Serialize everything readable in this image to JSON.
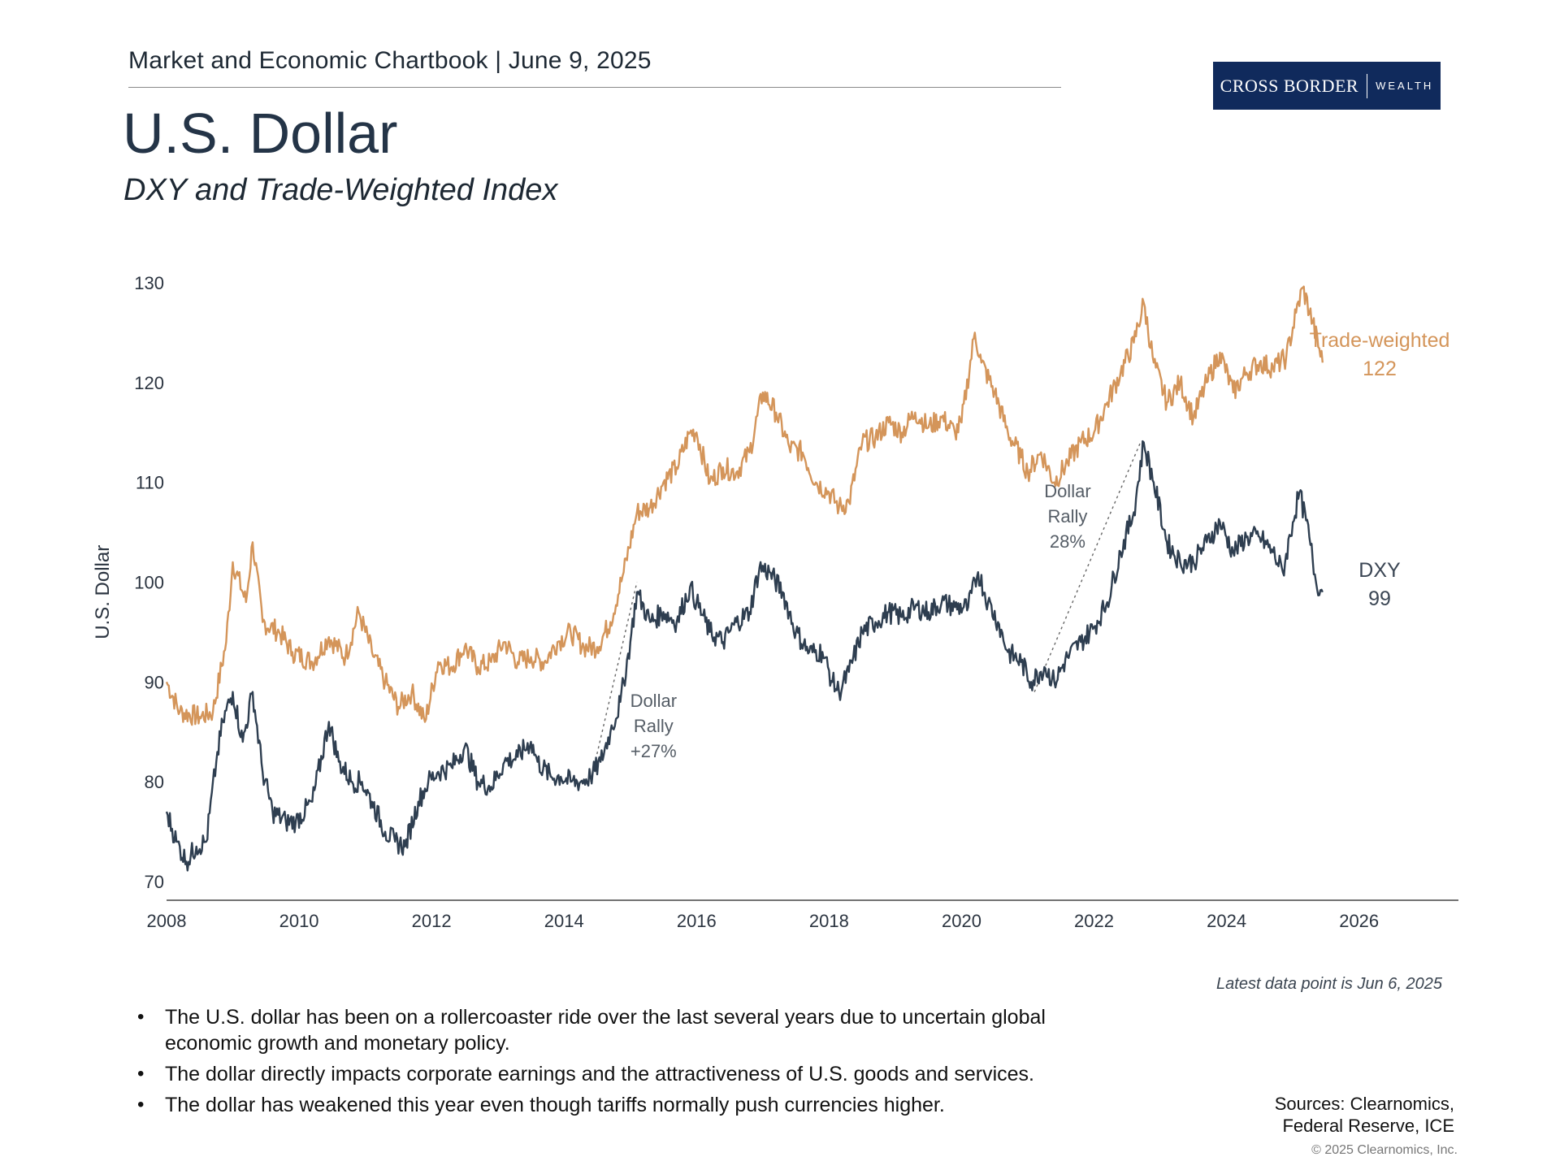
{
  "header": {
    "line": "Market and Economic Chartbook | June 9, 2025",
    "title": "U.S. Dollar",
    "subtitle": "DXY and Trade-Weighted Index"
  },
  "logo": {
    "brand": "CROSS BORDER",
    "sub": "WEALTH",
    "background": "#102a5c"
  },
  "chart_data": {
    "type": "line",
    "ylabel": "U.S. Dollar",
    "xlabel": "",
    "xlim": [
      2008,
      2027.5
    ],
    "ylim": [
      70,
      130
    ],
    "x_ticks": [
      "2008",
      "2010",
      "2012",
      "2014",
      "2016",
      "2018",
      "2020",
      "2022",
      "2024",
      "2026"
    ],
    "y_ticks": [
      "70",
      "80",
      "90",
      "100",
      "110",
      "120",
      "130"
    ],
    "grid": false,
    "series": [
      {
        "name": "Trade-weighted",
        "color": "#d4955a",
        "end_label": "Trade-weighted",
        "end_value": "122",
        "points": [
          [
            2008.0,
            90
          ],
          [
            2008.2,
            87
          ],
          [
            2008.5,
            86.5
          ],
          [
            2008.7,
            87
          ],
          [
            2008.9,
            94
          ],
          [
            2009.0,
            102
          ],
          [
            2009.2,
            98
          ],
          [
            2009.3,
            104
          ],
          [
            2009.45,
            96
          ],
          [
            2009.7,
            95
          ],
          [
            2009.9,
            93
          ],
          [
            2010.2,
            92
          ],
          [
            2010.45,
            94.5
          ],
          [
            2010.7,
            92.5
          ],
          [
            2010.9,
            97
          ],
          [
            2011.1,
            93
          ],
          [
            2011.3,
            90
          ],
          [
            2011.5,
            87.5
          ],
          [
            2011.7,
            89
          ],
          [
            2011.9,
            86
          ],
          [
            2012.1,
            92
          ],
          [
            2012.3,
            91.5
          ],
          [
            2012.5,
            93.5
          ],
          [
            2012.7,
            91.5
          ],
          [
            2012.9,
            92
          ],
          [
            2013.1,
            94
          ],
          [
            2013.3,
            92
          ],
          [
            2013.5,
            92.5
          ],
          [
            2013.7,
            92
          ],
          [
            2013.9,
            94
          ],
          [
            2014.1,
            95
          ],
          [
            2014.3,
            93.5
          ],
          [
            2014.5,
            93.5
          ],
          [
            2014.7,
            96
          ],
          [
            2014.9,
            101
          ],
          [
            2015.1,
            107
          ],
          [
            2015.3,
            107.5
          ],
          [
            2015.5,
            110
          ],
          [
            2015.7,
            111.5
          ],
          [
            2015.9,
            115
          ],
          [
            2016.0,
            115
          ],
          [
            2016.2,
            110
          ],
          [
            2016.4,
            111.5
          ],
          [
            2016.6,
            111
          ],
          [
            2016.8,
            113
          ],
          [
            2017.0,
            119
          ],
          [
            2017.2,
            117
          ],
          [
            2017.4,
            113.5
          ],
          [
            2017.6,
            113
          ],
          [
            2017.8,
            110
          ],
          [
            2018.0,
            109
          ],
          [
            2018.15,
            107.5
          ],
          [
            2018.3,
            108
          ],
          [
            2018.5,
            114
          ],
          [
            2018.7,
            114.5
          ],
          [
            2018.9,
            116
          ],
          [
            2019.1,
            115
          ],
          [
            2019.3,
            117
          ],
          [
            2019.5,
            115.5
          ],
          [
            2019.7,
            116.5
          ],
          [
            2019.9,
            115
          ],
          [
            2020.0,
            116
          ],
          [
            2020.2,
            125
          ],
          [
            2020.3,
            122
          ],
          [
            2020.5,
            119
          ],
          [
            2020.7,
            115
          ],
          [
            2020.9,
            112.5
          ],
          [
            2021.0,
            111
          ],
          [
            2021.2,
            113
          ],
          [
            2021.4,
            110
          ],
          [
            2021.6,
            112
          ],
          [
            2021.8,
            114
          ],
          [
            2022.0,
            115
          ],
          [
            2022.2,
            118
          ],
          [
            2022.4,
            121
          ],
          [
            2022.6,
            124
          ],
          [
            2022.75,
            128
          ],
          [
            2022.9,
            122
          ],
          [
            2023.1,
            118
          ],
          [
            2023.3,
            120
          ],
          [
            2023.5,
            116.5
          ],
          [
            2023.7,
            120
          ],
          [
            2023.9,
            123
          ],
          [
            2024.1,
            119
          ],
          [
            2024.3,
            121
          ],
          [
            2024.5,
            122
          ],
          [
            2024.7,
            121.5
          ],
          [
            2024.9,
            122.5
          ],
          [
            2025.05,
            127
          ],
          [
            2025.15,
            129.5
          ],
          [
            2025.3,
            126
          ],
          [
            2025.45,
            122
          ]
        ]
      },
      {
        "name": "DXY",
        "color": "#2e3e50",
        "end_label": "DXY",
        "end_value": "99",
        "points": [
          [
            2008.0,
            77
          ],
          [
            2008.15,
            74
          ],
          [
            2008.3,
            72
          ],
          [
            2008.45,
            73.5
          ],
          [
            2008.6,
            74
          ],
          [
            2008.75,
            82
          ],
          [
            2008.85,
            86
          ],
          [
            2009.0,
            89
          ],
          [
            2009.15,
            84
          ],
          [
            2009.3,
            89
          ],
          [
            2009.45,
            81
          ],
          [
            2009.6,
            77
          ],
          [
            2009.8,
            76
          ],
          [
            2009.95,
            76
          ],
          [
            2010.2,
            78
          ],
          [
            2010.45,
            86
          ],
          [
            2010.6,
            82
          ],
          [
            2010.8,
            80
          ],
          [
            2010.95,
            80
          ],
          [
            2011.1,
            78
          ],
          [
            2011.3,
            75
          ],
          [
            2011.45,
            74
          ],
          [
            2011.6,
            73.5
          ],
          [
            2011.8,
            78
          ],
          [
            2011.95,
            80
          ],
          [
            2012.1,
            81
          ],
          [
            2012.3,
            81.5
          ],
          [
            2012.5,
            83.5
          ],
          [
            2012.7,
            80
          ],
          [
            2012.9,
            79.5
          ],
          [
            2013.1,
            82
          ],
          [
            2013.3,
            82.5
          ],
          [
            2013.5,
            84
          ],
          [
            2013.6,
            82
          ],
          [
            2013.8,
            80.5
          ],
          [
            2013.95,
            80.5
          ],
          [
            2014.1,
            80
          ],
          [
            2014.25,
            80
          ],
          [
            2014.4,
            80.5
          ],
          [
            2014.55,
            82
          ],
          [
            2014.7,
            85
          ],
          [
            2014.85,
            88
          ],
          [
            2015.0,
            94
          ],
          [
            2015.1,
            99
          ],
          [
            2015.3,
            96
          ],
          [
            2015.5,
            97
          ],
          [
            2015.7,
            96
          ],
          [
            2015.9,
            99.5
          ],
          [
            2016.0,
            98
          ],
          [
            2016.2,
            95
          ],
          [
            2016.4,
            94
          ],
          [
            2016.6,
            96
          ],
          [
            2016.8,
            97
          ],
          [
            2016.95,
            101.5
          ],
          [
            2017.1,
            101
          ],
          [
            2017.3,
            99
          ],
          [
            2017.5,
            95
          ],
          [
            2017.7,
            93
          ],
          [
            2017.9,
            93
          ],
          [
            2018.05,
            90
          ],
          [
            2018.15,
            89
          ],
          [
            2018.3,
            91
          ],
          [
            2018.5,
            95
          ],
          [
            2018.7,
            96
          ],
          [
            2018.9,
            97
          ],
          [
            2019.1,
            96.5
          ],
          [
            2019.3,
            97.5
          ],
          [
            2019.5,
            97
          ],
          [
            2019.7,
            98
          ],
          [
            2019.9,
            97.5
          ],
          [
            2020.1,
            97.5
          ],
          [
            2020.25,
            101
          ],
          [
            2020.4,
            98
          ],
          [
            2020.55,
            96
          ],
          [
            2020.7,
            93
          ],
          [
            2020.9,
            92
          ],
          [
            2021.05,
            90
          ],
          [
            2021.25,
            91.5
          ],
          [
            2021.4,
            90
          ],
          [
            2021.6,
            92.5
          ],
          [
            2021.8,
            94
          ],
          [
            2022.0,
            95.5
          ],
          [
            2022.2,
            98
          ],
          [
            2022.4,
            103
          ],
          [
            2022.6,
            107
          ],
          [
            2022.75,
            114
          ],
          [
            2022.9,
            110
          ],
          [
            2023.1,
            104
          ],
          [
            2023.3,
            102
          ],
          [
            2023.5,
            102
          ],
          [
            2023.7,
            104
          ],
          [
            2023.9,
            106
          ],
          [
            2024.1,
            103
          ],
          [
            2024.3,
            104.5
          ],
          [
            2024.5,
            104.5
          ],
          [
            2024.7,
            103
          ],
          [
            2024.85,
            101
          ],
          [
            2025.0,
            106
          ],
          [
            2025.1,
            109
          ],
          [
            2025.25,
            104.5
          ],
          [
            2025.35,
            100
          ],
          [
            2025.45,
            99
          ]
        ]
      }
    ],
    "annotations": [
      {
        "lines": [
          "Dollar",
          "Rally",
          "+27%"
        ],
        "x": 2014.4,
        "y": 80,
        "x2": 2015.1,
        "y2": 100
      },
      {
        "lines": [
          "Dollar",
          "Rally",
          "28%"
        ],
        "x": 2021.1,
        "y": 89,
        "x2": 2022.7,
        "y2": 114
      }
    ],
    "note": "Latest data point is Jun 6, 2025"
  },
  "bullets": [
    "The U.S. dollar has been on a rollercoaster ride over the last several years due to uncertain global economic growth and monetary policy.",
    "The dollar directly impacts corporate earnings and the attractiveness of U.S. goods and services.",
    "The dollar has weakened this year even though tariffs normally push currencies higher."
  ],
  "sources": {
    "line1": "Sources: Clearnomics,",
    "line2": "Federal Reserve, ICE"
  },
  "copyright": "© 2025 Clearnomics, Inc."
}
